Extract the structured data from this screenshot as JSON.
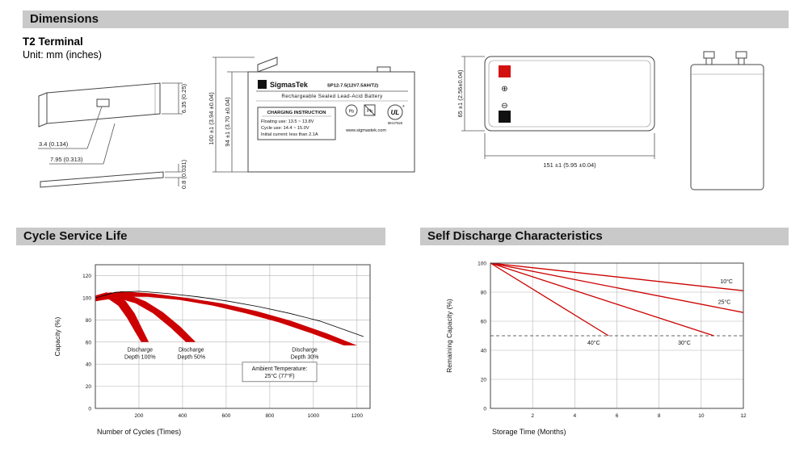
{
  "headers": {
    "dimensions": "Dimensions",
    "cycle": "Cycle Service Life",
    "self_discharge": "Self Discharge Characteristics"
  },
  "dimensions_section": {
    "terminal_title": "T2 Terminal",
    "unit_label": "Unit: mm (inches)",
    "terminal_drawing": {
      "dim_hole": "3.4 (0.134)",
      "dim_width": "7.95 (0.313)",
      "dim_height": "6.35 (0.25)",
      "dim_thickness": "0.8 (0.031)"
    },
    "front_view": {
      "dim_total_height": "100 ±1 (3.94 ±0.04)",
      "dim_body_height": "94 ±1 (3.70 ±0.04)",
      "logo_letter": "S",
      "brand": "SigmasTek",
      "model": "SP12-7.5(12V7.5AH/T2)",
      "subtitle": "Rechargeable Sealed Lead-Acid Battery",
      "charging_box_title": "CHARGING INSTRUCTION",
      "charging_lines": [
        "Floating use: 13.5 ~ 13.8V",
        "Cycle use: 14.4 ~ 15.0V",
        "Initial current: less than 2.1A"
      ],
      "pb_label": "Pb",
      "ul_mark": "UL",
      "reg_mark": "®",
      "ul_code": "MH47626",
      "website": "www.sigmastek.com"
    },
    "top_view": {
      "dim_height": "65 ±1 (2.56±0.04)",
      "dim_width": "151 ±1 (5.95 ±0.04)",
      "plus": "⊕",
      "minus": "⊖"
    }
  },
  "chart_data": [
    {
      "type": "area",
      "title": "Cycle Service Life",
      "xlabel": "Number of Cycles (Times)",
      "ylabel": "Capacity (%)",
      "xlim": [
        0,
        1260
      ],
      "ylim": [
        0,
        130
      ],
      "xticks": [
        200,
        400,
        600,
        800,
        1000,
        1200
      ],
      "yticks": [
        0,
        20,
        40,
        60,
        80,
        100,
        120
      ],
      "band_color": "#cc0000",
      "grid": true,
      "bands": [
        {
          "name": "Discharge Depth 100%",
          "polygon": [
            [
              0,
              102
            ],
            [
              50,
              105
            ],
            [
              100,
              103
            ],
            [
              140,
              97
            ],
            [
              180,
              86
            ],
            [
              215,
              72
            ],
            [
              245,
              60
            ],
            [
              210,
              60
            ],
            [
              180,
              70
            ],
            [
              145,
              82
            ],
            [
              105,
              93
            ],
            [
              60,
              99
            ],
            [
              0,
              97
            ]
          ]
        },
        {
          "name": "Discharge Depth 50%",
          "polygon": [
            [
              0,
              102
            ],
            [
              70,
              105
            ],
            [
              150,
              103
            ],
            [
              230,
              97
            ],
            [
              310,
              87
            ],
            [
              390,
              74
            ],
            [
              460,
              60
            ],
            [
              415,
              60
            ],
            [
              345,
              73
            ],
            [
              265,
              86
            ],
            [
              185,
              95
            ],
            [
              100,
              100
            ],
            [
              0,
              97
            ]
          ]
        },
        {
          "name": "Discharge Depth 30%",
          "polygon": [
            [
              0,
              102
            ],
            [
              120,
              106
            ],
            [
              260,
              104
            ],
            [
              420,
              100
            ],
            [
              580,
              95
            ],
            [
              740,
              88
            ],
            [
              900,
              79
            ],
            [
              1060,
              68
            ],
            [
              1200,
              57
            ],
            [
              1140,
              57
            ],
            [
              990,
              68
            ],
            [
              840,
              78
            ],
            [
              690,
              86
            ],
            [
              540,
              93
            ],
            [
              390,
              98
            ],
            [
              240,
              101
            ],
            [
              100,
              101
            ],
            [
              0,
              97
            ]
          ]
        }
      ],
      "envelope": [
        [
          0,
          100
        ],
        [
          90,
          105
        ],
        [
          200,
          106
        ],
        [
          330,
          104
        ],
        [
          470,
          101
        ],
        [
          610,
          97
        ],
        [
          750,
          92
        ],
        [
          890,
          86
        ],
        [
          1030,
          79
        ],
        [
          1160,
          70
        ],
        [
          1230,
          65
        ]
      ],
      "annotations": [
        {
          "lines": [
            "Discharge",
            "Depth 100%"
          ],
          "x": 205,
          "y": 50
        },
        {
          "lines": [
            "Discharge",
            "Depth 50%"
          ],
          "x": 440,
          "y": 50
        },
        {
          "lines": [
            "Discharge",
            "Depth 30%"
          ],
          "x": 960,
          "y": 50
        },
        {
          "lines": [
            "Ambient Temperature:",
            "25°C (77°F)"
          ],
          "x": 845,
          "y": 33,
          "boxed": true
        }
      ]
    },
    {
      "type": "line",
      "title": "Self Discharge Characteristics",
      "xlabel": "Storage Time (Months)",
      "ylabel": "Remaining Capacity (%)",
      "xlim": [
        0,
        12
      ],
      "ylim": [
        0,
        100
      ],
      "xticks": [
        2,
        4,
        6,
        8,
        10,
        12
      ],
      "yticks": [
        0,
        20,
        40,
        60,
        80,
        100
      ],
      "line_color": "#cc0000",
      "grid": true,
      "dashed_y": 50,
      "series": [
        {
          "name": "10°C",
          "points": [
            [
              0,
              100
            ],
            [
              12,
              81
            ]
          ],
          "label_pos": [
            11.2,
            86
          ]
        },
        {
          "name": "25°C",
          "points": [
            [
              0,
              100
            ],
            [
              12,
              66
            ]
          ],
          "label_pos": [
            11.1,
            72
          ]
        },
        {
          "name": "30°C",
          "points": [
            [
              0,
              100
            ],
            [
              10.6,
              50
            ]
          ],
          "label_pos": [
            9.2,
            44
          ]
        },
        {
          "name": "40°C",
          "points": [
            [
              0,
              100
            ],
            [
              5.6,
              50
            ]
          ],
          "label_pos": [
            4.9,
            44
          ]
        }
      ]
    }
  ]
}
